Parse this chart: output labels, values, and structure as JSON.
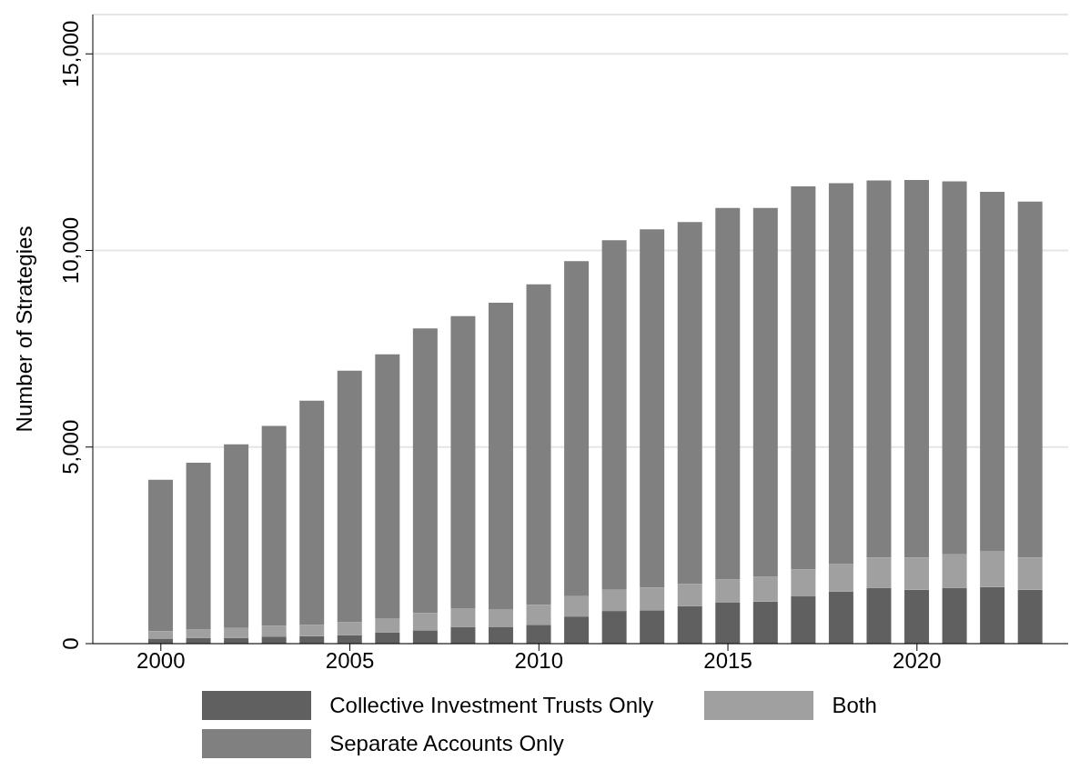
{
  "chart_data": {
    "type": "bar",
    "stacked": true,
    "ylabel": "Number of Strategies",
    "x": [
      2000,
      2001,
      2002,
      2003,
      2004,
      2005,
      2006,
      2007,
      2008,
      2009,
      2010,
      2011,
      2012,
      2013,
      2014,
      2015,
      2016,
      2017,
      2018,
      2019,
      2020,
      2021,
      2022,
      2023
    ],
    "series": [
      {
        "name": "Collective Investment Trusts Only",
        "color": "#606060",
        "values": [
          130,
          150,
          150,
          180,
          190,
          220,
          290,
          340,
          430,
          430,
          480,
          690,
          830,
          850,
          950,
          1040,
          1070,
          1200,
          1330,
          1420,
          1370,
          1420,
          1440,
          1370
        ]
      },
      {
        "name": "Both",
        "color": "#a0a0a0",
        "values": [
          180,
          210,
          250,
          270,
          290,
          330,
          360,
          440,
          470,
          450,
          500,
          520,
          540,
          570,
          570,
          590,
          630,
          690,
          700,
          770,
          820,
          850,
          920,
          820
        ]
      },
      {
        "name": "Separate Accounts Only",
        "color": "#808080",
        "values": [
          3860,
          4240,
          4670,
          5090,
          5700,
          6390,
          6710,
          7240,
          7430,
          7790,
          8160,
          8520,
          8890,
          9120,
          9200,
          9450,
          9380,
          9740,
          9680,
          9590,
          9600,
          9490,
          9130,
          9050
        ]
      }
    ],
    "xlim": [
      1998.2,
      2024
    ],
    "xticks": [
      2000,
      2005,
      2010,
      2015,
      2020
    ],
    "ylim": [
      0,
      16000
    ],
    "yticks": [
      {
        "value": 0,
        "label": "0"
      },
      {
        "value": 5000,
        "label": "5,000"
      },
      {
        "value": 10000,
        "label": "10,000"
      },
      {
        "value": 15000,
        "label": "15,000"
      }
    ],
    "grid": "y",
    "legend": "bottom"
  }
}
